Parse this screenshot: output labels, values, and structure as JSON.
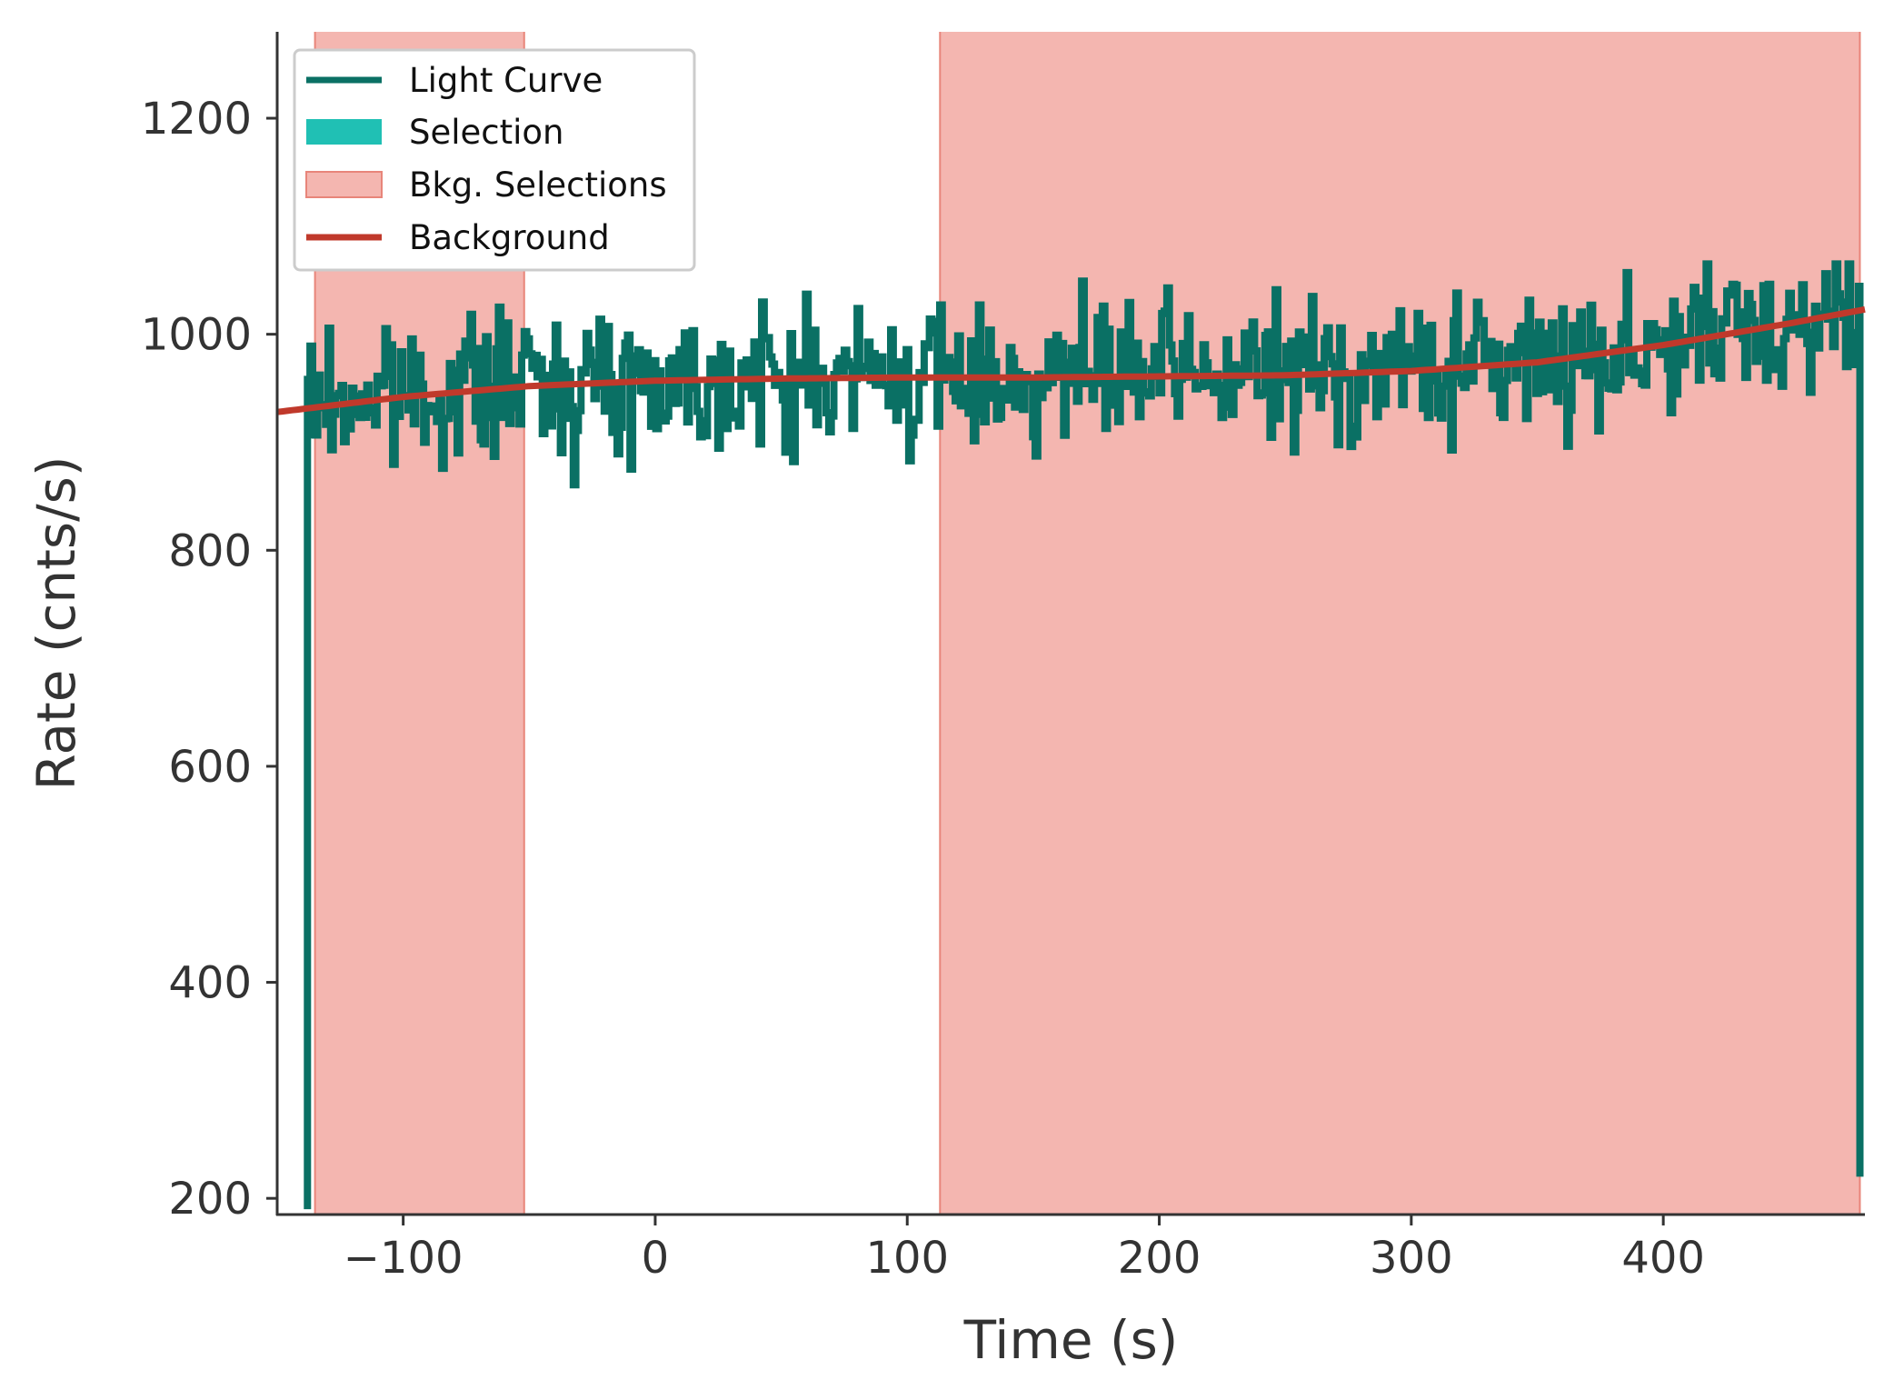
{
  "chart_data": {
    "type": "line",
    "title": "",
    "xlabel": "Time (s)",
    "ylabel": "Rate (cnts/s)",
    "xlim": [
      -150,
      480
    ],
    "ylim": [
      185,
      1280
    ],
    "xticks": [
      -100,
      0,
      100,
      200,
      300,
      400
    ],
    "yticks": [
      200,
      400,
      600,
      800,
      1000,
      1200
    ],
    "xtick_labels": [
      "−100",
      "0",
      "100",
      "200",
      "300",
      "400"
    ],
    "ytick_labels": [
      "200",
      "400",
      "600",
      "800",
      "1000",
      "1200"
    ],
    "grid": false,
    "legend_position": "top-left",
    "legend": [
      "Light Curve",
      "Selection",
      "Bkg. Selections",
      "Background"
    ],
    "colors": {
      "light_curve": "#0a7064",
      "selection": "#20c0b4",
      "bkg_selection_fill": "#f4b6b0",
      "bkg_selection_edge": "#e8857a",
      "background": "#c0392b",
      "axis": "#333333"
    },
    "light_curve": {
      "start_time": -138,
      "end_time": 478,
      "bin_width": 1.024,
      "start_rate": 190,
      "end_rate": 220,
      "baseline": {
        "x": [
          -138,
          -100,
          -50,
          0,
          100,
          200,
          250,
          300,
          350,
          400,
          478
        ],
        "y": [
          935,
          945,
          955,
          958,
          960,
          962,
          963,
          968,
          975,
          990,
          1022
        ]
      },
      "noise_amplitude": 32,
      "rate_range": [
        855,
        1065
      ]
    },
    "background_selections": [
      [
        -135,
        -52
      ],
      [
        113,
        478
      ]
    ],
    "selection": [],
    "background_model": {
      "x": [
        -150,
        -100,
        -50,
        0,
        50,
        100,
        150,
        200,
        250,
        300,
        350,
        400,
        450,
        480
      ],
      "y": [
        928,
        942,
        952,
        957,
        959,
        960,
        960,
        961,
        962,
        966,
        974,
        990,
        1010,
        1023
      ]
    }
  }
}
